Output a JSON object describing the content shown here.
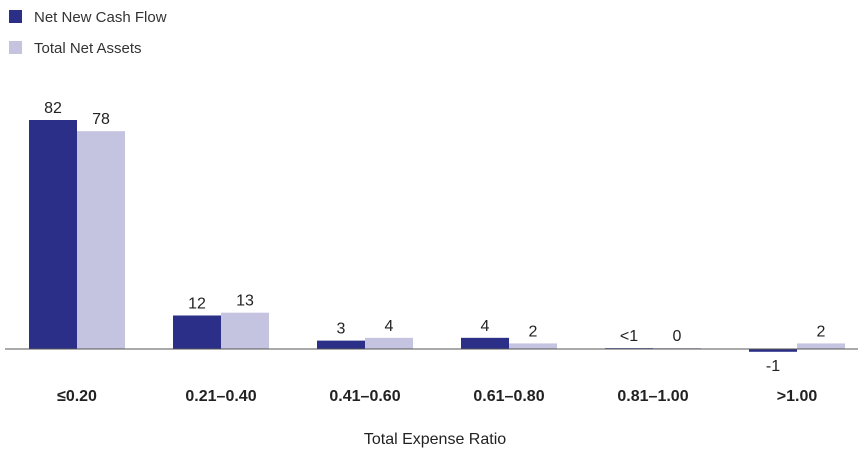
{
  "chart_data": {
    "type": "bar",
    "categories": [
      "≤0.20",
      "0.21–0.40",
      "0.41–0.60",
      "0.61–0.80",
      "0.81–1.00",
      ">1.00"
    ],
    "series": [
      {
        "name": "Net New Cash Flow",
        "values": [
          82,
          12,
          3,
          4,
          0.3,
          -1
        ],
        "labels": [
          "82",
          "12",
          "3",
          "4",
          "<1",
          "-1"
        ],
        "color": "#2b2f87"
      },
      {
        "name": "Total Net Assets",
        "values": [
          78,
          13,
          4,
          2,
          0,
          2
        ],
        "labels": [
          "78",
          "13",
          "4",
          "2",
          "0",
          "2"
        ],
        "color": "#c4c3e0"
      }
    ],
    "xlabel": "Total Expense Ratio",
    "ylabel": "",
    "ylim": [
      -1,
      82
    ],
    "grid": false,
    "legend": "top-left"
  }
}
